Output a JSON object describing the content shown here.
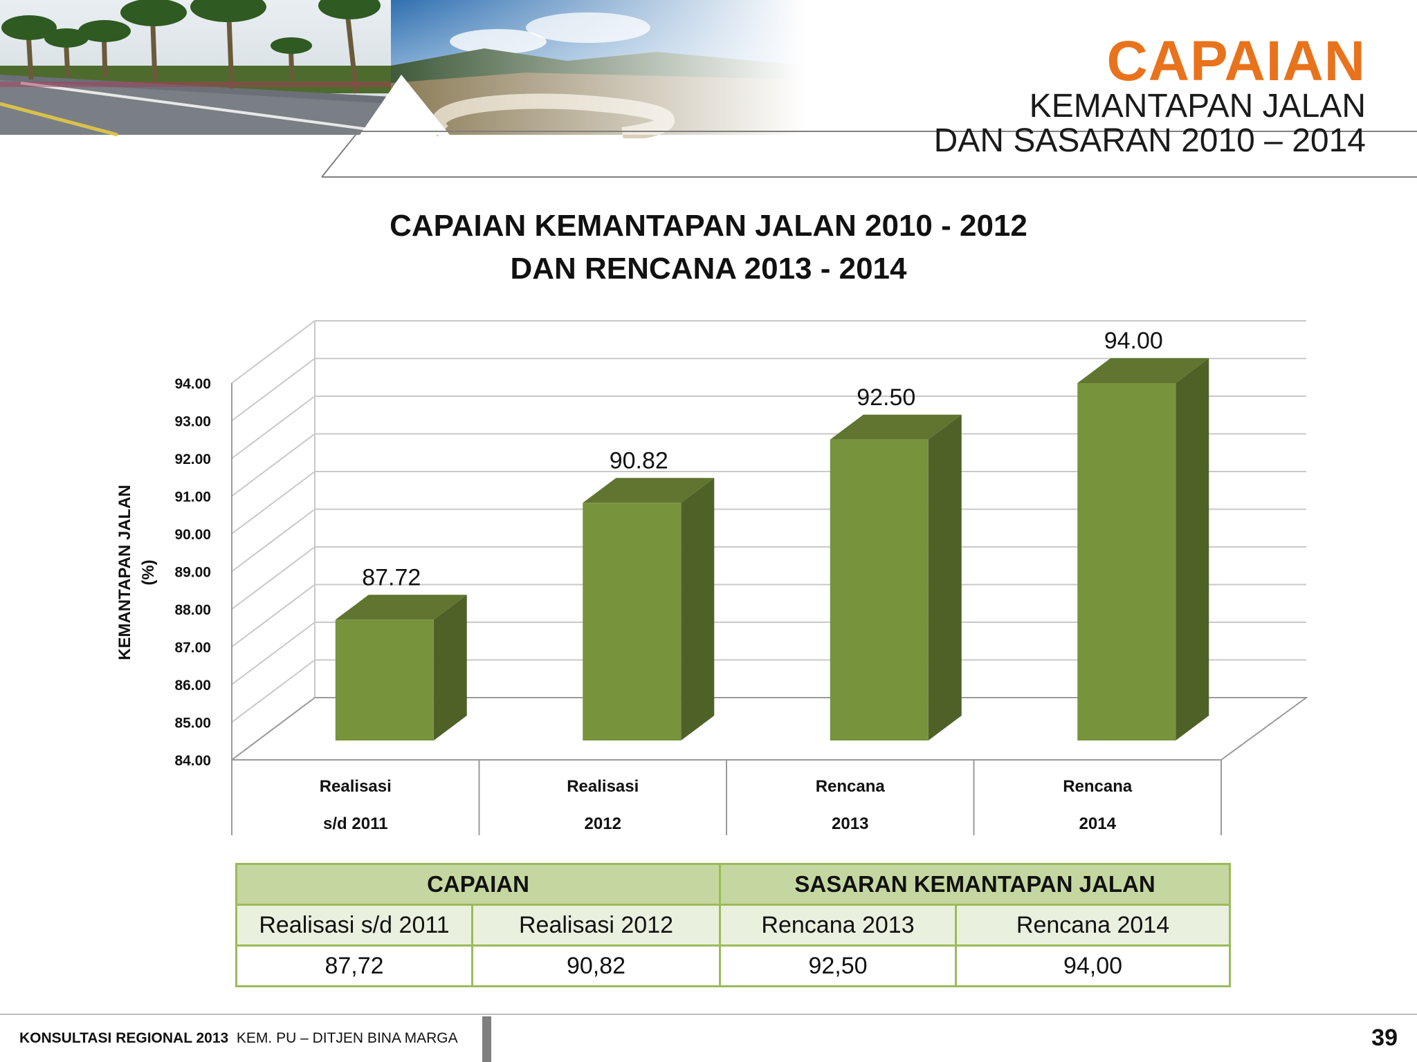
{
  "header": {
    "title": "CAPAIAN",
    "subtitle_line1": "KEMANTAPAN JALAN",
    "subtitle_line2": "DAN SASARAN 2010 – 2014",
    "accent_color": "#e8731c"
  },
  "chart_data": {
    "type": "bar",
    "title_line1": "CAPAIAN KEMANTAPAN JALAN 2010 - 2012",
    "title_line2": "DAN RENCANA 2013 - 2014",
    "ylabel_line1": "KEMANTAPAN JALAN",
    "ylabel_line2": "(%)",
    "ylim": [
      84.0,
      94.0
    ],
    "yticks": [
      "84.00",
      "85.00",
      "86.00",
      "87.00",
      "88.00",
      "89.00",
      "90.00",
      "91.00",
      "92.00",
      "93.00",
      "94.00"
    ],
    "categories": [
      {
        "line1": "Realisasi",
        "line2": "s/d 2011"
      },
      {
        "line1": "Realisasi",
        "line2": "2012"
      },
      {
        "line1": "Rencana",
        "line2": "2013"
      },
      {
        "line1": "Rencana",
        "line2": "2014"
      }
    ],
    "values": [
      87.72,
      90.82,
      92.5,
      94.0
    ],
    "value_labels": [
      "87.72",
      "90.82",
      "92.50",
      "94.00"
    ],
    "bar_color": "#77933c",
    "grid": true
  },
  "table": {
    "group_headers": [
      "CAPAIAN",
      "SASARAN KEMANTAPAN JALAN"
    ],
    "columns": [
      "Realisasi s/d 2011",
      "Realisasi 2012",
      "Rencana 2013",
      "Rencana 2014"
    ],
    "values": [
      "87,72",
      "90,82",
      "92,50",
      "94,00"
    ]
  },
  "footer": {
    "bold_text": "KONSULTASI REGIONAL 2013",
    "text": "KEM. PU – DITJEN BINA MARGA",
    "page_number": "39"
  }
}
